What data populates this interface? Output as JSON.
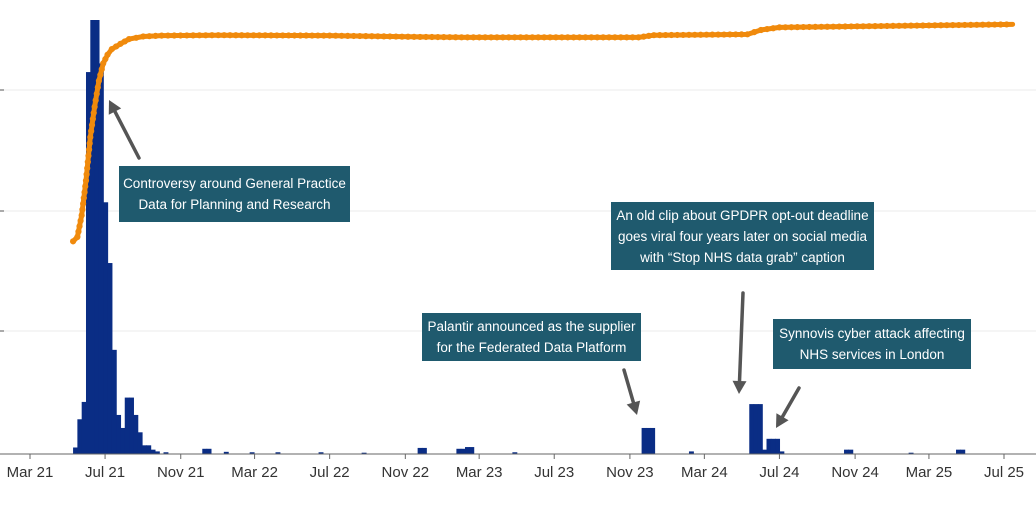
{
  "chart_data": {
    "type": "bar",
    "title": "",
    "xlabel": "",
    "ylabel": "",
    "grid": true,
    "x_ticks": [
      "Mar 21",
      "Jul 21",
      "Nov 21",
      "Mar 22",
      "Jul 22",
      "Nov 22",
      "Mar 23",
      "Jul 23",
      "Nov 23",
      "Mar 24",
      "Jul 24",
      "Nov 24",
      "Mar 25",
      "Jul 25"
    ],
    "bars": {
      "color": "#0a2d85",
      "unit": "weekly volume (relative, max = 100)",
      "values": [
        {
          "week": "2021-05-10",
          "value": 1.5
        },
        {
          "week": "2021-05-17",
          "value": 8
        },
        {
          "week": "2021-05-24",
          "value": 12
        },
        {
          "week": "2021-05-31",
          "value": 88
        },
        {
          "week": "2021-06-07",
          "value": 100
        },
        {
          "week": "2021-06-14",
          "value": 100
        },
        {
          "week": "2021-06-21",
          "value": 90
        },
        {
          "week": "2021-06-28",
          "value": 58
        },
        {
          "week": "2021-07-05",
          "value": 44
        },
        {
          "week": "2021-07-12",
          "value": 24
        },
        {
          "week": "2021-07-19",
          "value": 9
        },
        {
          "week": "2021-07-26",
          "value": 6
        },
        {
          "week": "2021-08-02",
          "value": 13
        },
        {
          "week": "2021-08-09",
          "value": 13
        },
        {
          "week": "2021-08-16",
          "value": 9
        },
        {
          "week": "2021-08-23",
          "value": 5
        },
        {
          "week": "2021-08-30",
          "value": 2
        },
        {
          "week": "2021-09-06",
          "value": 2
        },
        {
          "week": "2021-09-13",
          "value": 1
        },
        {
          "week": "2021-09-20",
          "value": 0.6
        },
        {
          "week": "2021-10-04",
          "value": 0.4
        },
        {
          "week": "2021-12-06",
          "value": 1.2
        },
        {
          "week": "2021-12-13",
          "value": 1.2
        },
        {
          "week": "2022-01-10",
          "value": 0.5
        },
        {
          "week": "2022-02-21",
          "value": 0.4
        },
        {
          "week": "2022-04-04",
          "value": 0.4
        },
        {
          "week": "2022-06-13",
          "value": 0.4
        },
        {
          "week": "2022-08-22",
          "value": 0.3
        },
        {
          "week": "2022-11-21",
          "value": 1.4
        },
        {
          "week": "2022-11-28",
          "value": 1.4
        },
        {
          "week": "2023-01-23",
          "value": 1.2
        },
        {
          "week": "2023-01-30",
          "value": 1.2
        },
        {
          "week": "2023-02-06",
          "value": 1.6
        },
        {
          "week": "2023-02-13",
          "value": 1.6
        },
        {
          "week": "2023-04-24",
          "value": 0.4
        },
        {
          "week": "2023-11-20",
          "value": 6
        },
        {
          "week": "2023-11-27",
          "value": 6
        },
        {
          "week": "2023-12-04",
          "value": 6
        },
        {
          "week": "2024-02-05",
          "value": 0.6
        },
        {
          "week": "2024-05-13",
          "value": 11.5
        },
        {
          "week": "2024-05-20",
          "value": 11.5
        },
        {
          "week": "2024-05-27",
          "value": 11.5
        },
        {
          "week": "2024-06-03",
          "value": 1
        },
        {
          "week": "2024-06-10",
          "value": 3.5
        },
        {
          "week": "2024-06-17",
          "value": 3.5
        },
        {
          "week": "2024-06-24",
          "value": 3.5
        },
        {
          "week": "2024-07-01",
          "value": 0.6
        },
        {
          "week": "2024-10-14",
          "value": 1
        },
        {
          "week": "2024-10-21",
          "value": 1
        },
        {
          "week": "2025-01-27",
          "value": 0.3
        },
        {
          "week": "2025-04-14",
          "value": 1
        },
        {
          "week": "2025-04-21",
          "value": 1
        }
      ]
    },
    "cumulative_line": {
      "color": "#f08a0c",
      "unit": "cumulative share (%)",
      "points": [
        {
          "date": "2021-05-10",
          "value": 49
        },
        {
          "date": "2021-05-17",
          "value": 50
        },
        {
          "date": "2021-05-24",
          "value": 55
        },
        {
          "date": "2021-05-31",
          "value": 63
        },
        {
          "date": "2021-06-07",
          "value": 73
        },
        {
          "date": "2021-06-14",
          "value": 80
        },
        {
          "date": "2021-06-21",
          "value": 86
        },
        {
          "date": "2021-06-28",
          "value": 90
        },
        {
          "date": "2021-07-05",
          "value": 92
        },
        {
          "date": "2021-07-12",
          "value": 93.3
        },
        {
          "date": "2021-07-26",
          "value": 94.5
        },
        {
          "date": "2021-08-09",
          "value": 95.6
        },
        {
          "date": "2021-09-01",
          "value": 96.2
        },
        {
          "date": "2021-10-01",
          "value": 96.4
        },
        {
          "date": "2022-01-01",
          "value": 96.5
        },
        {
          "date": "2022-07-01",
          "value": 96.4
        },
        {
          "date": "2022-11-25",
          "value": 96.1
        },
        {
          "date": "2023-02-10",
          "value": 96.0
        },
        {
          "date": "2023-11-15",
          "value": 96.0
        },
        {
          "date": "2023-12-10",
          "value": 96.5
        },
        {
          "date": "2024-05-10",
          "value": 96.7
        },
        {
          "date": "2024-06-01",
          "value": 97.7
        },
        {
          "date": "2024-07-01",
          "value": 98.3
        },
        {
          "date": "2025-07-15",
          "value": 99.0
        }
      ]
    },
    "annotations": [
      {
        "lines": [
          "Controversy around General Practice",
          "Data for Planning and Research"
        ]
      },
      {
        "lines": [
          "An old clip about GPDPR opt-out deadline",
          "goes viral four years later on social media",
          "with “Stop NHS data grab” caption"
        ]
      },
      {
        "lines": [
          "Palantir announced as the supplier",
          "for the Federated Data Platform"
        ]
      },
      {
        "lines": [
          "Synnovis cyber attack affecting",
          "NHS services in London"
        ]
      }
    ]
  }
}
